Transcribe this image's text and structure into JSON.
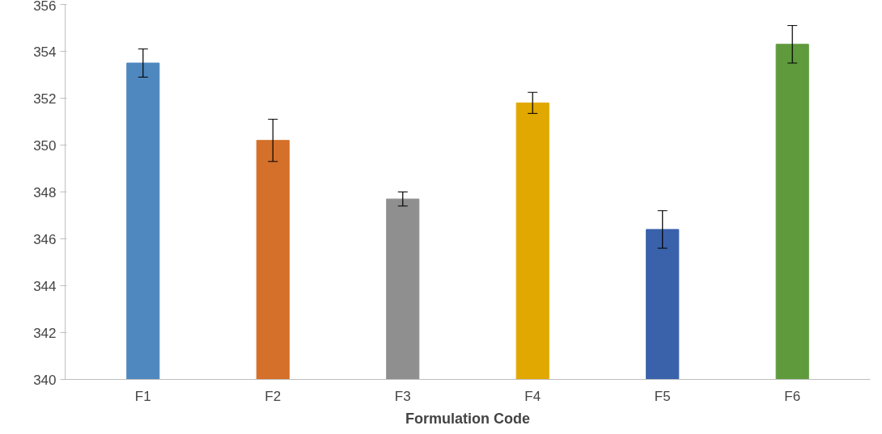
{
  "chart_data": {
    "type": "bar",
    "xlabel": "Formulation Code",
    "categories": [
      "F1",
      "F2",
      "F3",
      "F4",
      "F5",
      "F6"
    ],
    "values": [
      353.5,
      350.2,
      347.7,
      351.8,
      346.4,
      354.3
    ],
    "errors": [
      0.6,
      0.9,
      0.3,
      0.45,
      0.8,
      0.8
    ],
    "colors": [
      "#4f88bf",
      "#d4702a",
      "#8f8f8f",
      "#e0a800",
      "#3a62ab",
      "#5f9b3d"
    ],
    "ylim": [
      340,
      356
    ],
    "yticks": [
      340,
      342,
      344,
      346,
      348,
      350,
      352,
      354,
      356
    ],
    "grid": false
  }
}
